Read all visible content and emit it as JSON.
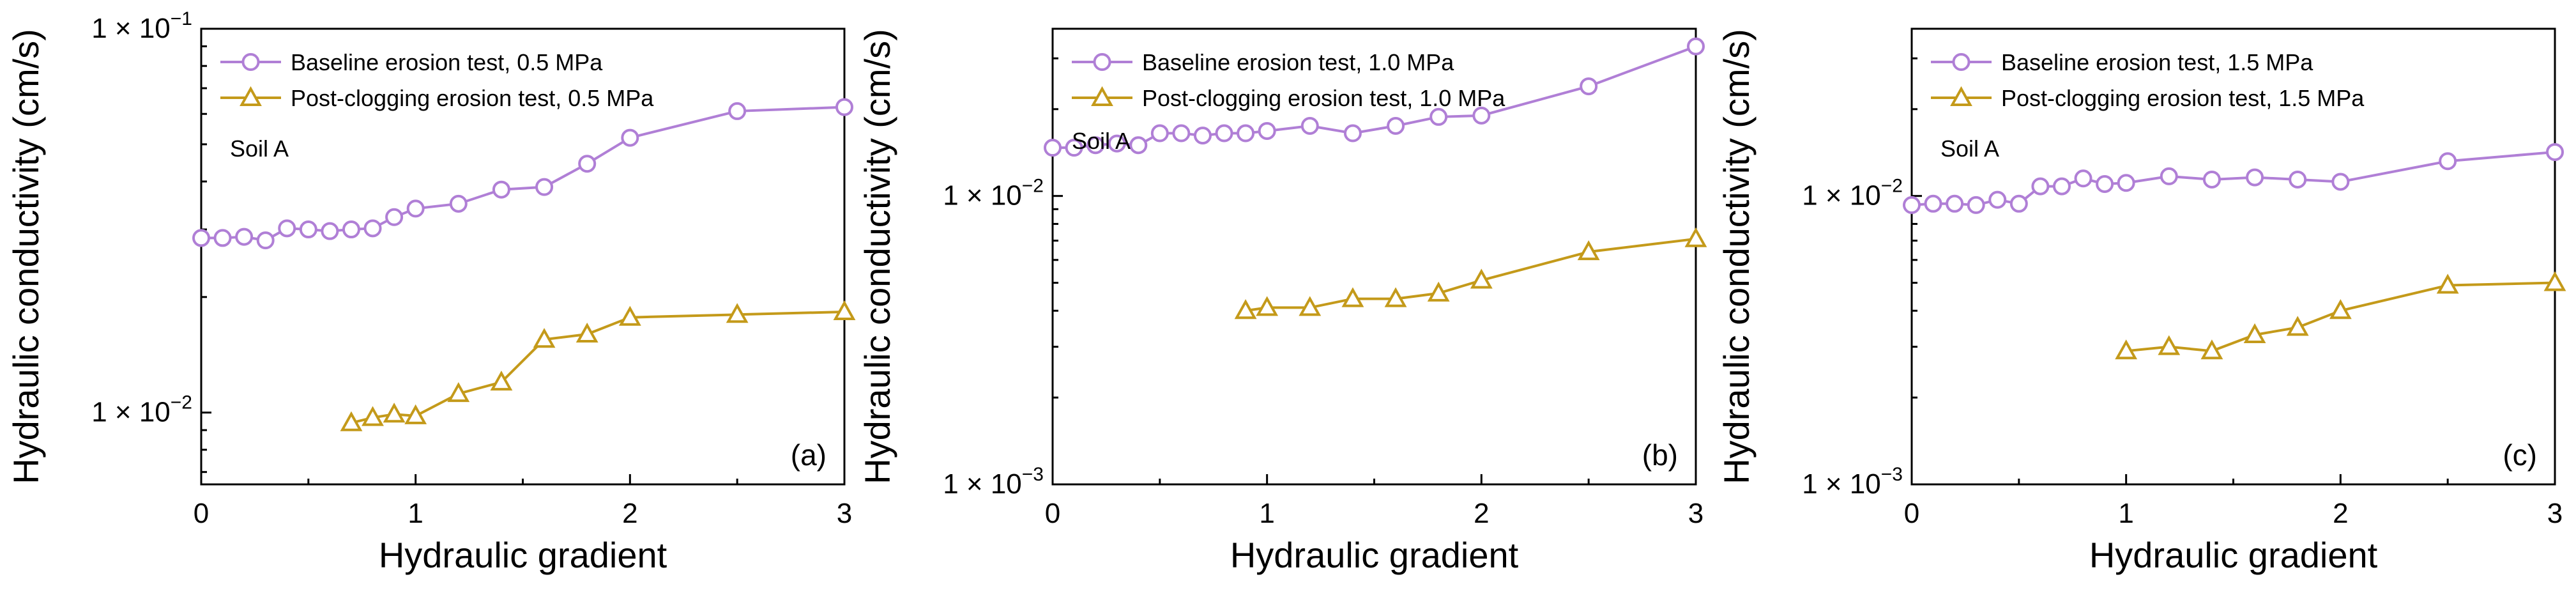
{
  "colors": {
    "baseline": "#b07fd6",
    "post": "#c49a1a"
  },
  "chart_data": [
    {
      "type": "line",
      "panel_label": "(a)",
      "annotation": "Soil A",
      "xlabel": "Hydraulic gradient",
      "ylabel": "Hydraulic conductivity (cm/s)",
      "xlim": [
        0,
        3
      ],
      "ylim": [
        0.0065,
        0.1
      ],
      "yscale": "log",
      "xticks": [
        0,
        1,
        2,
        3
      ],
      "yticks": [
        {
          "base": "1 × 10",
          "exp": "−2",
          "value": 0.01
        },
        {
          "base": "1 × 10",
          "exp": "−1",
          "value": 0.1
        }
      ],
      "legend_position": "top-left",
      "series": [
        {
          "name": "Baseline erosion test, 0.5 MPa",
          "marker": "circle",
          "x": [
            0,
            0.1,
            0.2,
            0.3,
            0.4,
            0.5,
            0.6,
            0.7,
            0.8,
            0.9,
            1.0,
            1.2,
            1.4,
            1.6,
            1.8,
            2.0,
            2.5,
            3.0
          ],
          "y": [
            0.0285,
            0.0285,
            0.0287,
            0.0281,
            0.0302,
            0.03,
            0.0297,
            0.03,
            0.0302,
            0.0323,
            0.034,
            0.035,
            0.0381,
            0.0387,
            0.0445,
            0.052,
            0.061,
            0.0625
          ]
        },
        {
          "name": "Post-clogging erosion test, 0.5 MPa",
          "marker": "triangle",
          "x": [
            0.7,
            0.8,
            0.9,
            1.0,
            1.2,
            1.4,
            1.6,
            1.8,
            2.0,
            2.5,
            3.0
          ],
          "y": [
            0.0094,
            0.0097,
            0.0099,
            0.0098,
            0.0112,
            0.012,
            0.0155,
            0.016,
            0.0177,
            0.018,
            0.0183
          ]
        }
      ]
    },
    {
      "type": "line",
      "panel_label": "(b)",
      "annotation": "Soil A",
      "xlabel": "Hydraulic gradient",
      "ylabel": "Hydraulic conductivity (cm/s)",
      "xlim": [
        0,
        3
      ],
      "ylim": [
        0.001,
        0.038
      ],
      "yscale": "log",
      "xticks": [
        0,
        1,
        2,
        3
      ],
      "yticks": [
        {
          "base": "1 × 10",
          "exp": "−3",
          "value": 0.001
        },
        {
          "base": "1 × 10",
          "exp": "−2",
          "value": 0.01
        }
      ],
      "legend_position": "top-left",
      "series": [
        {
          "name": "Baseline erosion test, 1.0 MPa",
          "marker": "circle",
          "x": [
            0,
            0.1,
            0.2,
            0.3,
            0.4,
            0.5,
            0.6,
            0.7,
            0.8,
            0.9,
            1.0,
            1.2,
            1.4,
            1.6,
            1.8,
            2.0,
            2.5,
            3.0
          ],
          "y": [
            0.0147,
            0.0147,
            0.015,
            0.0152,
            0.015,
            0.0165,
            0.0165,
            0.0162,
            0.0165,
            0.0165,
            0.0168,
            0.0175,
            0.0165,
            0.0175,
            0.0188,
            0.019,
            0.024,
            0.033
          ]
        },
        {
          "name": "Post-clogging erosion test, 1.0 MPa",
          "marker": "triangle",
          "x": [
            0.9,
            1.0,
            1.2,
            1.4,
            1.6,
            1.8,
            2.0,
            2.5,
            3.0
          ],
          "y": [
            0.004,
            0.0041,
            0.0041,
            0.0044,
            0.0044,
            0.0046,
            0.0051,
            0.0064,
            0.0071
          ]
        }
      ]
    },
    {
      "type": "line",
      "panel_label": "(c)",
      "annotation": "Soil A",
      "xlabel": "Hydraulic gradient",
      "ylabel": "Hydraulic conductivity (cm/s)",
      "xlim": [
        0,
        3
      ],
      "ylim": [
        0.001,
        0.038
      ],
      "yscale": "log",
      "xticks": [
        0,
        1,
        2,
        3
      ],
      "yticks": [
        {
          "base": "1 × 10",
          "exp": "−3",
          "value": 0.001
        },
        {
          "base": "1 × 10",
          "exp": "−2",
          "value": 0.01
        }
      ],
      "legend_position": "top-left",
      "series": [
        {
          "name": "Baseline erosion test, 1.5 MPa",
          "marker": "circle",
          "x": [
            0,
            0.1,
            0.2,
            0.3,
            0.4,
            0.5,
            0.6,
            0.7,
            0.8,
            0.9,
            1.0,
            1.2,
            1.4,
            1.6,
            1.8,
            2.0,
            2.5,
            3.0
          ],
          "y": [
            0.0093,
            0.0094,
            0.0094,
            0.0093,
            0.0097,
            0.0094,
            0.0108,
            0.0108,
            0.0115,
            0.011,
            0.0111,
            0.0117,
            0.0114,
            0.0116,
            0.0114,
            0.0112,
            0.0132,
            0.0142
          ]
        },
        {
          "name": "Post-clogging erosion test, 1.5 MPa",
          "marker": "triangle",
          "x": [
            1.0,
            1.2,
            1.4,
            1.6,
            1.8,
            2.0,
            2.5,
            3.0
          ],
          "y": [
            0.0029,
            0.003,
            0.0029,
            0.0033,
            0.0035,
            0.004,
            0.0049,
            0.005
          ]
        }
      ]
    }
  ]
}
